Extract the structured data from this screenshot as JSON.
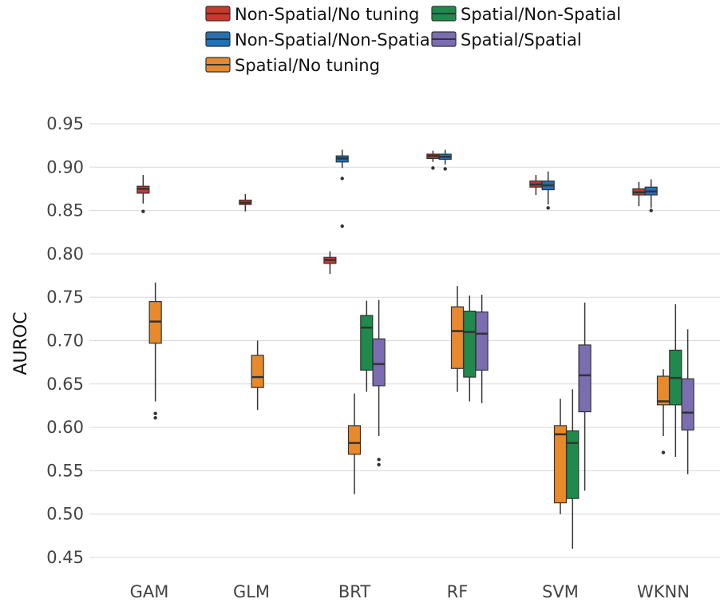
{
  "chart_data": {
    "type": "boxplot",
    "ylabel": "AUROC",
    "xlabel": "",
    "ylim": [
      0.44,
      0.96
    ],
    "yticks": [
      "0.45",
      "0.50",
      "0.55",
      "0.60",
      "0.65",
      "0.70",
      "0.75",
      "0.80",
      "0.85",
      "0.90",
      "0.95"
    ],
    "grid": "horizontal",
    "legend_position": "top",
    "categories": [
      "GAM",
      "GLM",
      "BRT",
      "RF",
      "SVM",
      "WKNN"
    ],
    "series": [
      {
        "name": "Non-Spatial/No tuning",
        "color": "#c9382b",
        "boxes": [
          {
            "category": "GAM",
            "q1": 0.87,
            "median": 0.875,
            "q3": 0.878,
            "whisker_low": 0.858,
            "whisker_high": 0.891,
            "outliers": [
              0.849
            ]
          },
          {
            "category": "GLM",
            "q1": 0.857,
            "median": 0.859,
            "q3": 0.862,
            "whisker_low": 0.849,
            "whisker_high": 0.869,
            "outliers": []
          },
          {
            "category": "BRT",
            "q1": 0.789,
            "median": 0.793,
            "q3": 0.796,
            "whisker_low": 0.777,
            "whisker_high": 0.803,
            "outliers": []
          },
          {
            "category": "RF",
            "q1": 0.91,
            "median": 0.913,
            "q3": 0.915,
            "whisker_low": 0.906,
            "whisker_high": 0.919,
            "outliers": [
              0.899
            ]
          },
          {
            "category": "SVM",
            "q1": 0.877,
            "median": 0.88,
            "q3": 0.884,
            "whisker_low": 0.868,
            "whisker_high": 0.891,
            "outliers": []
          },
          {
            "category": "WKNN",
            "q1": 0.868,
            "median": 0.871,
            "q3": 0.875,
            "whisker_low": 0.855,
            "whisker_high": 0.883,
            "outliers": []
          }
        ]
      },
      {
        "name": "Non-Spatial/Non-Spatial",
        "color": "#1f72b8",
        "boxes": [
          {
            "category": "BRT",
            "q1": 0.906,
            "median": 0.91,
            "q3": 0.913,
            "whisker_low": 0.899,
            "whisker_high": 0.92,
            "outliers": [
              0.887,
              0.832
            ]
          },
          {
            "category": "RF",
            "q1": 0.909,
            "median": 0.912,
            "q3": 0.915,
            "whisker_low": 0.903,
            "whisker_high": 0.92,
            "outliers": [
              0.898
            ]
          },
          {
            "category": "SVM",
            "q1": 0.874,
            "median": 0.879,
            "q3": 0.884,
            "whisker_low": 0.857,
            "whisker_high": 0.895,
            "outliers": [
              0.853
            ]
          },
          {
            "category": "WKNN",
            "q1": 0.868,
            "median": 0.872,
            "q3": 0.877,
            "whisker_low": 0.853,
            "whisker_high": 0.886,
            "outliers": [
              0.85
            ]
          }
        ]
      },
      {
        "name": "Spatial/No tuning",
        "color": "#e8892b",
        "boxes": [
          {
            "category": "GAM",
            "q1": 0.697,
            "median": 0.722,
            "q3": 0.745,
            "whisker_low": 0.63,
            "whisker_high": 0.767,
            "outliers": [
              0.616,
              0.611
            ]
          },
          {
            "category": "GLM",
            "q1": 0.646,
            "median": 0.658,
            "q3": 0.683,
            "whisker_low": 0.62,
            "whisker_high": 0.7,
            "outliers": []
          },
          {
            "category": "BRT",
            "q1": 0.569,
            "median": 0.582,
            "q3": 0.602,
            "whisker_low": 0.523,
            "whisker_high": 0.639,
            "outliers": []
          },
          {
            "category": "RF",
            "q1": 0.668,
            "median": 0.711,
            "q3": 0.739,
            "whisker_low": 0.641,
            "whisker_high": 0.763,
            "outliers": []
          },
          {
            "category": "SVM",
            "q1": 0.513,
            "median": 0.592,
            "q3": 0.602,
            "whisker_low": 0.5,
            "whisker_high": 0.633,
            "outliers": []
          },
          {
            "category": "WKNN",
            "q1": 0.626,
            "median": 0.63,
            "q3": 0.659,
            "whisker_low": 0.59,
            "whisker_high": 0.667,
            "outliers": [
              0.571
            ]
          }
        ]
      },
      {
        "name": "Spatial/Non-Spatial",
        "color": "#1f8a4c",
        "boxes": [
          {
            "category": "BRT",
            "q1": 0.666,
            "median": 0.715,
            "q3": 0.729,
            "whisker_low": 0.641,
            "whisker_high": 0.746,
            "outliers": []
          },
          {
            "category": "RF",
            "q1": 0.658,
            "median": 0.71,
            "q3": 0.734,
            "whisker_low": 0.63,
            "whisker_high": 0.752,
            "outliers": []
          },
          {
            "category": "SVM",
            "q1": 0.518,
            "median": 0.582,
            "q3": 0.596,
            "whisker_low": 0.46,
            "whisker_high": 0.644,
            "outliers": []
          },
          {
            "category": "WKNN",
            "q1": 0.626,
            "median": 0.657,
            "q3": 0.689,
            "whisker_low": 0.566,
            "whisker_high": 0.742,
            "outliers": []
          }
        ]
      },
      {
        "name": "Spatial/Spatial",
        "color": "#7b6db0",
        "boxes": [
          {
            "category": "BRT",
            "q1": 0.648,
            "median": 0.673,
            "q3": 0.702,
            "whisker_low": 0.59,
            "whisker_high": 0.747,
            "outliers": [
              0.563,
              0.557
            ]
          },
          {
            "category": "RF",
            "q1": 0.666,
            "median": 0.708,
            "q3": 0.733,
            "whisker_low": 0.628,
            "whisker_high": 0.753,
            "outliers": []
          },
          {
            "category": "SVM",
            "q1": 0.618,
            "median": 0.66,
            "q3": 0.695,
            "whisker_low": 0.527,
            "whisker_high": 0.744,
            "outliers": []
          },
          {
            "category": "WKNN",
            "q1": 0.597,
            "median": 0.617,
            "q3": 0.656,
            "whisker_low": 0.546,
            "whisker_high": 0.713,
            "outliers": []
          }
        ]
      }
    ],
    "legend": [
      "Non-Spatial/No tuning",
      "Spatial/Non-Spatial",
      "Non-Spatial/Non-Spatial",
      "Spatial/Spatial",
      "Spatial/No tuning"
    ]
  }
}
